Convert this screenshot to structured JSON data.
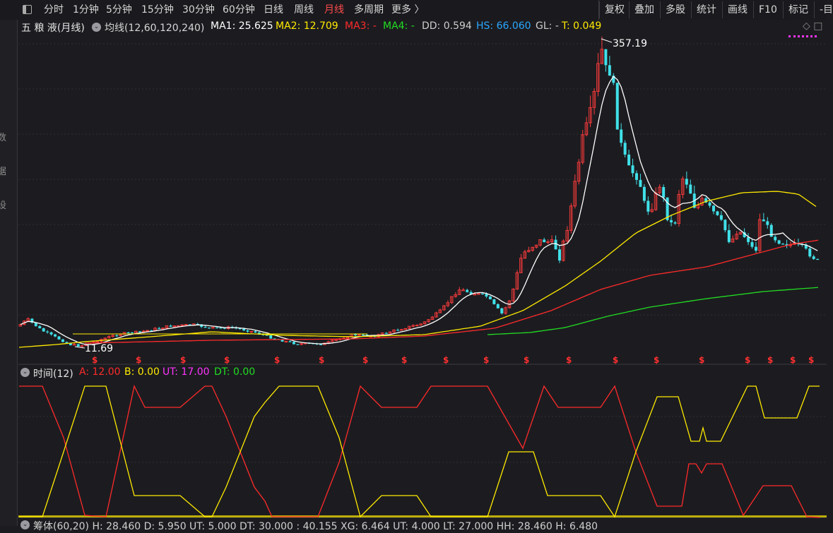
{
  "toolbar": {
    "periods": [
      "分时",
      "1分钟",
      "5分钟",
      "15分钟",
      "30分钟",
      "60分钟",
      "日线",
      "周线",
      "月线",
      "多周期",
      "更多 〉"
    ],
    "active_period": "月线",
    "right_buttons": [
      "复权",
      "叠加",
      "多股",
      "统计",
      "画线",
      "F10",
      "标记",
      "-目"
    ]
  },
  "left_strip": {
    "chars": [
      "数",
      "据",
      "设"
    ]
  },
  "main_legend": {
    "stock_name": "五 粮 液(月线)",
    "indicator": "均线(12,60,120,240)",
    "items": [
      {
        "label": "MA1: 25.625",
        "color": "#ffffff"
      },
      {
        "label": "MA2: 12.709",
        "color": "#ffea00"
      },
      {
        "label": "MA3: -",
        "color": "#ff2a2a"
      },
      {
        "label": "MA4: -",
        "color": "#22dd22"
      },
      {
        "label": "DD: 0.594",
        "color": "#cccccc"
      },
      {
        "label": "HS: 66.060",
        "color": "#2aa7ff"
      },
      {
        "label": "GL: -",
        "color": "#cccccc"
      },
      {
        "label": "T: 0.049",
        "color": "#ffea00"
      }
    ],
    "right_icons": "◇ □"
  },
  "annotations": {
    "high_label": "357.19",
    "low_label": "11.69",
    "dividend_mark": "$"
  },
  "sub_legend": {
    "name": "时间(12)",
    "items": [
      {
        "label": "A: 12.00",
        "color": "#ff2a2a"
      },
      {
        "label": "B: 0.00",
        "color": "#ffea00"
      },
      {
        "label": "UT: 17.00",
        "color": "#ff33ff"
      },
      {
        "label": "DT: 0.00",
        "color": "#22dd22"
      }
    ]
  },
  "bottom_legend": {
    "text": "筹体(60,20)  H: 28.460  D: 5.950  UT: 5.000  DT: 30.000  : 40.155  XG: 6.464  UT: 4.000  LT: 27.000  HH: 28.460  H: 6.480"
  },
  "colors": {
    "background": "#1c1c20",
    "up": "#ff3b3b",
    "down": "#40e0e8",
    "ma1": "#ffffff",
    "ma2": "#ffea00",
    "ma3": "#ff2a2a",
    "ma4": "#22dd22",
    "line_a": "#ff2a2a",
    "line_b": "#ffea00",
    "grid": "#2e2e33",
    "active_tab": "#ff4b4b",
    "marker": "#ff3030"
  },
  "chart_data": {
    "type": "candlestick",
    "stock": "五粮液",
    "period": "月线",
    "high": 357.19,
    "low": 11.69,
    "ma_values": {
      "MA1": 25.625,
      "MA2": 12.709
    },
    "sub_indicator": {
      "name": "时间(12)",
      "A": 12.0,
      "B": 0.0,
      "UT": 17.0,
      "DT": 0.0
    }
  }
}
